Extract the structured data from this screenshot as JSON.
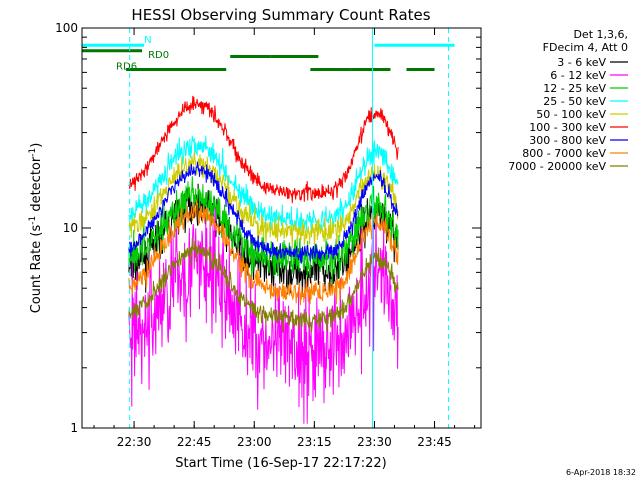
{
  "chart_data": {
    "type": "line",
    "title": "HESSI Observing Summary Count Rates",
    "xlabel": "Start Time (16-Sep-17 22:17:22)",
    "ylabel": "Count Rate (s",
    "ylabel_sup": "-1",
    "ylabel_tail": " detector",
    "ylabel_tail_sup": "-1",
    "ylabel_close": ")",
    "xlim_min": [
      0,
      80
    ],
    "ylim": [
      1,
      100
    ],
    "yscale": "log",
    "x_ticks": [
      {
        "min": 13,
        "label": "22:30"
      },
      {
        "min": 28,
        "label": "22:45"
      },
      {
        "min": 43,
        "label": "23:00"
      },
      {
        "min": 58,
        "label": "23:15"
      },
      {
        "min": 73,
        "label": "23:30"
      },
      {
        "min": 88,
        "label": "23:45"
      }
    ],
    "y_ticks": [
      {
        "value": 1,
        "label": "1"
      },
      {
        "value": 10,
        "label": "10"
      },
      {
        "value": 100,
        "label": "100"
      }
    ],
    "legend_header": [
      "Det 1,3,6,",
      "FDecim 4, Att 0"
    ],
    "legend_placement": "right, outside plot",
    "series": [
      {
        "name": "3 - 6 keV",
        "color": "#000000",
        "base": 6.0,
        "amp": 2.2,
        "noise": 0.12
      },
      {
        "name": "6 - 12 keV",
        "color": "#ff00ff",
        "base": 2.5,
        "amp": 2.6,
        "noise": 0.35
      },
      {
        "name": "12 - 25 keV",
        "color": "#00cc00",
        "base": 7.0,
        "amp": 2.0,
        "noise": 0.12
      },
      {
        "name": "25 - 50 keV",
        "color": "#00ffff",
        "base": 11.0,
        "amp": 2.4,
        "noise": 0.07
      },
      {
        "name": "50 - 100 keV",
        "color": "#cccc00",
        "base": 9.5,
        "amp": 2.2,
        "noise": 0.07
      },
      {
        "name": "100 - 300 keV",
        "color": "#ff0000",
        "base": 15.0,
        "amp": 2.8,
        "noise": 0.05
      },
      {
        "name": "300 - 800 keV",
        "color": "#0000ff",
        "base": 7.5,
        "amp": 2.6,
        "noise": 0.05
      },
      {
        "name": "800 - 7000 keV",
        "color": "#ff8000",
        "base": 4.8,
        "amp": 2.5,
        "noise": 0.07
      },
      {
        "name": "7000 - 20000 keV",
        "color": "#808000",
        "base": 3.5,
        "amp": 2.2,
        "noise": 0.06
      }
    ],
    "data_span_min": [
      11.7,
      79
    ],
    "peaks_min": [
      28.5,
      73.5
    ],
    "annotations": {
      "bars_cyan": [
        {
          "y": 82,
          "from": 0,
          "to": 15.5
        },
        {
          "y": 82,
          "from": 73,
          "to": 93
        }
      ],
      "bars_green_top": [
        {
          "y": 77,
          "from": 0,
          "to": 15
        },
        {
          "y": 72,
          "from": 37,
          "to": 47
        },
        {
          "y": 72,
          "from": 47,
          "to": 59
        }
      ],
      "bars_green_low": [
        {
          "y": 62,
          "from": 11,
          "to": 36
        },
        {
          "y": 62,
          "from": 57,
          "to": 67
        },
        {
          "y": 62,
          "from": 67,
          "to": 77
        },
        {
          "y": 62,
          "from": 81,
          "to": 88
        }
      ],
      "cyan_solid_lines": [
        -3,
        72.5
      ],
      "cyan_dashed_lines": [
        11.9,
        91.5
      ],
      "labels": [
        {
          "text": "N",
          "min": 15.5,
          "value": 88,
          "color": "#00ffff"
        },
        {
          "text": "RD0",
          "min": 16.5,
          "value": 74,
          "color": "#007700"
        },
        {
          "text": "RD6",
          "min": 8.5,
          "value": 65,
          "color": "#007700"
        }
      ]
    }
  },
  "timestamp": "6-Apr-2018 18:32"
}
